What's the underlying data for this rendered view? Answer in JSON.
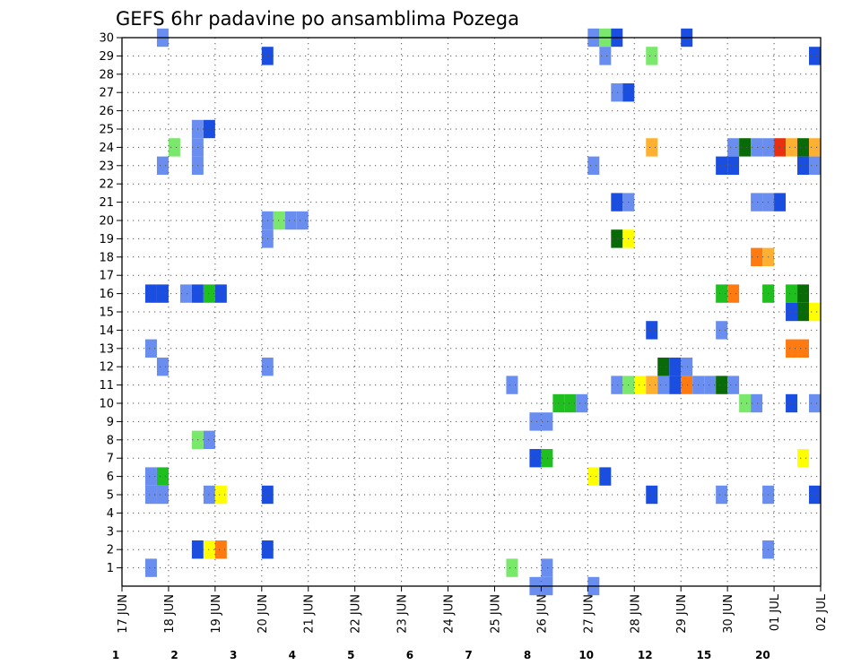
{
  "chart_data": {
    "type": "heatmap",
    "title": "GEFS 6hr padavine po ansamblima Pozega",
    "xlabel": "",
    "ylabel": "",
    "x_ticks": [
      "17 JUN",
      "18 JUN",
      "19 JUN",
      "20 JUN",
      "21 JUN",
      "22 JUN",
      "23 JUN",
      "24 JUN",
      "25 JUN",
      "26 JUN",
      "27 JUN",
      "28 JUN",
      "29 JUN",
      "30 JUN",
      "01 JUL",
      "02 JUL"
    ],
    "y_ticks": [
      1,
      2,
      3,
      4,
      5,
      6,
      7,
      8,
      9,
      10,
      11,
      12,
      13,
      14,
      15,
      16,
      17,
      18,
      19,
      20,
      21,
      22,
      23,
      24,
      25,
      26,
      27,
      28,
      29,
      30
    ],
    "x_unit": "6-hour steps from 17 JUN 00z",
    "xlim": [
      0,
      60
    ],
    "ylim": [
      0,
      30
    ],
    "grid": true,
    "colorbar": {
      "position": "bottom",
      "labels": [
        "1",
        "2",
        "3",
        "4",
        "5",
        "6",
        "7",
        "8",
        "10",
        "12",
        "15",
        "20"
      ],
      "colors": [
        "#b3c7f7",
        "#6a8ef0",
        "#1a4ee0",
        "#7ae86a",
        "#1fbf1f",
        "#086b08",
        "#ffff00",
        "#ffb030",
        "#ff7a10",
        "#e83010",
        "#b01010",
        "#6b0000"
      ]
    },
    "cells": [
      [
        3,
        30,
        1
      ],
      [
        3,
        23,
        1
      ],
      [
        4,
        24,
        3
      ],
      [
        2,
        16,
        2
      ],
      [
        3,
        16,
        2
      ],
      [
        2,
        13,
        1
      ],
      [
        3,
        12,
        1
      ],
      [
        2,
        6,
        1
      ],
      [
        3,
        6,
        4
      ],
      [
        2,
        5,
        1
      ],
      [
        3,
        5,
        1
      ],
      [
        2,
        1,
        1
      ],
      [
        6,
        25,
        1
      ],
      [
        7,
        25,
        2
      ],
      [
        6,
        24,
        1
      ],
      [
        6,
        23,
        1
      ],
      [
        5,
        16,
        1
      ],
      [
        6,
        16,
        2
      ],
      [
        7,
        16,
        4
      ],
      [
        8,
        16,
        2
      ],
      [
        6,
        8,
        3
      ],
      [
        7,
        8,
        1
      ],
      [
        7,
        5,
        1
      ],
      [
        8,
        5,
        6
      ],
      [
        6,
        2,
        2
      ],
      [
        7,
        2,
        6
      ],
      [
        8,
        2,
        8
      ],
      [
        12,
        29,
        2
      ],
      [
        12,
        20,
        1
      ],
      [
        13,
        20,
        3
      ],
      [
        14,
        20,
        1
      ],
      [
        15,
        20,
        1
      ],
      [
        12,
        19,
        1
      ],
      [
        12,
        12,
        1
      ],
      [
        12,
        5,
        2
      ],
      [
        12,
        2,
        2
      ],
      [
        33,
        11,
        1
      ],
      [
        33,
        1,
        3
      ],
      [
        35,
        9,
        1
      ],
      [
        36,
        9,
        1
      ],
      [
        35,
        7,
        2
      ],
      [
        36,
        7,
        4
      ],
      [
        36,
        0,
        1
      ],
      [
        36,
        1,
        1
      ],
      [
        35,
        0,
        1
      ],
      [
        37,
        10,
        4
      ],
      [
        38,
        10,
        4
      ],
      [
        39,
        10,
        1
      ],
      [
        40,
        6,
        6
      ],
      [
        41,
        6,
        2
      ],
      [
        40,
        30,
        1
      ],
      [
        41,
        30,
        3
      ],
      [
        42,
        30,
        2
      ],
      [
        40,
        0,
        1
      ],
      [
        40,
        23,
        1
      ],
      [
        41,
        29,
        1
      ],
      [
        42,
        27,
        1
      ],
      [
        43,
        27,
        2
      ],
      [
        42,
        21,
        2
      ],
      [
        43,
        21,
        1
      ],
      [
        42,
        19,
        5
      ],
      [
        43,
        19,
        6
      ],
      [
        42,
        11,
        1
      ],
      [
        43,
        11,
        3
      ],
      [
        44,
        11,
        6
      ],
      [
        45,
        11,
        7
      ],
      [
        46,
        11,
        1
      ],
      [
        45,
        24,
        7
      ],
      [
        45,
        29,
        3
      ],
      [
        45,
        14,
        2
      ],
      [
        45,
        5,
        2
      ],
      [
        46,
        12,
        5
      ],
      [
        47,
        12,
        2
      ],
      [
        48,
        12,
        1
      ],
      [
        47,
        11,
        2
      ],
      [
        48,
        11,
        8
      ],
      [
        49,
        11,
        1
      ],
      [
        50,
        11,
        1
      ],
      [
        51,
        11,
        5
      ],
      [
        52,
        11,
        1
      ],
      [
        48,
        30,
        2
      ],
      [
        51,
        16,
        4
      ],
      [
        52,
        16,
        8
      ],
      [
        51,
        14,
        1
      ],
      [
        51,
        5,
        1
      ],
      [
        51,
        23,
        2
      ],
      [
        52,
        23,
        2
      ],
      [
        52,
        24,
        1
      ],
      [
        53,
        24,
        5
      ],
      [
        54,
        24,
        1
      ],
      [
        55,
        24,
        1
      ],
      [
        54,
        21,
        1
      ],
      [
        55,
        21,
        1
      ],
      [
        56,
        21,
        2
      ],
      [
        54,
        18,
        8
      ],
      [
        55,
        18,
        7
      ],
      [
        55,
        16,
        4
      ],
      [
        55,
        5,
        1
      ],
      [
        55,
        2,
        1
      ],
      [
        53,
        10,
        3
      ],
      [
        54,
        10,
        1
      ],
      [
        56,
        24,
        9
      ],
      [
        57,
        24,
        7
      ],
      [
        58,
        24,
        5
      ],
      [
        59,
        24,
        7
      ],
      [
        60,
        24,
        5
      ],
      [
        61,
        24,
        2
      ],
      [
        58,
        23,
        2
      ],
      [
        59,
        23,
        1
      ],
      [
        57,
        16,
        4
      ],
      [
        58,
        16,
        5
      ],
      [
        60,
        16,
        2
      ],
      [
        61,
        16,
        1
      ],
      [
        57,
        15,
        2
      ],
      [
        58,
        15,
        5
      ],
      [
        59,
        15,
        6
      ],
      [
        57,
        13,
        8
      ],
      [
        58,
        13,
        8
      ],
      [
        57,
        10,
        2
      ],
      [
        59,
        10,
        1
      ],
      [
        61,
        10,
        1
      ],
      [
        62,
        10,
        2
      ],
      [
        58,
        7,
        6
      ],
      [
        59,
        5,
        2
      ],
      [
        59,
        29,
        2
      ],
      [
        61,
        22,
        3
      ],
      [
        62,
        22,
        3
      ],
      [
        62,
        13,
        1
      ],
      [
        61,
        5,
        2
      ],
      [
        62,
        5,
        7
      ]
    ]
  }
}
